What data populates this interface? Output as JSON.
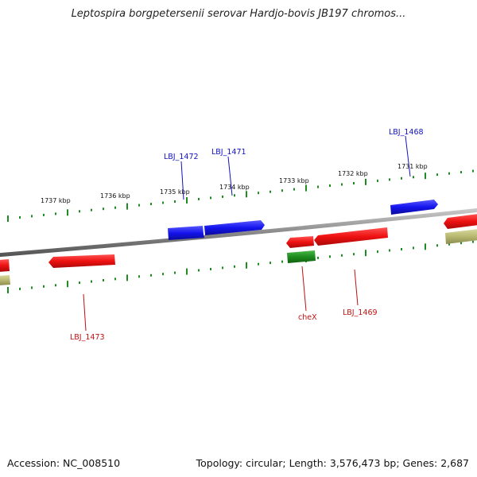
{
  "title": "Leptospira borgpetersenii serovar Hardjo-bovis JB197 chromos...",
  "footer": {
    "accession": "Accession: NC_008510",
    "topology": "Topology: circular; Length: 3,576,473 bp; Genes: 2,687"
  },
  "ruler": {
    "labels": [
      "1737 kbp",
      "1736 kbp",
      "1735 kbp",
      "1734 kbp",
      "1733 kbp",
      "1732 kbp",
      "1731 kbp"
    ]
  },
  "genes": {
    "blue_labels": [
      "LBJ_1472",
      "LBJ_1471",
      "LBJ_1468"
    ],
    "red_labels": [
      "LBJ_1473",
      "cheX",
      "LBJ_1469"
    ]
  },
  "colors": {
    "forward_gene": "#1a1aee",
    "reverse_gene": "#ee1111",
    "rna_gene": "#1e8c1e",
    "other_feature": "#b8b870",
    "backbone": "#8a8a8a",
    "tick": "#1e8c1e"
  }
}
